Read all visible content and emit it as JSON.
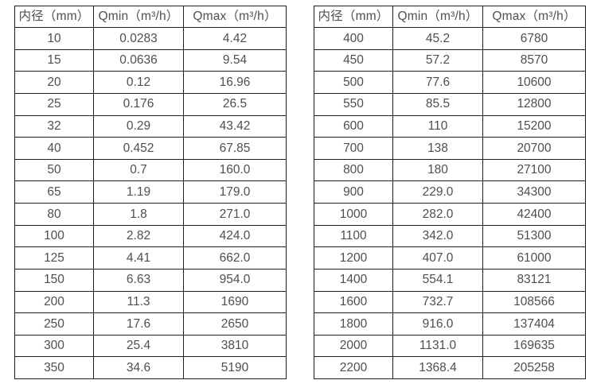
{
  "page": {
    "background_color": "#ffffff",
    "text_color": "#4f4f4f",
    "border_color": "#1f1f1f"
  },
  "tables": [
    {
      "name": "flow-rate-table-small-diameters",
      "headers": [
        "内径（mm）",
        "Qmin（m³/h）",
        "Qmax（m³/h）"
      ],
      "rows": [
        [
          "10",
          "0.0283",
          "4.42"
        ],
        [
          "15",
          "0.0636",
          "9.54"
        ],
        [
          "20",
          "0.12",
          "16.96"
        ],
        [
          "25",
          "0.176",
          "26.5"
        ],
        [
          "32",
          "0.29",
          "43.42"
        ],
        [
          "40",
          "0.452",
          "67.85"
        ],
        [
          "50",
          "0.7",
          "160.0"
        ],
        [
          "65",
          "1.19",
          "179.0"
        ],
        [
          "80",
          "1.8",
          "271.0"
        ],
        [
          "100",
          "2.82",
          "424.0"
        ],
        [
          "125",
          "4.41",
          "662.0"
        ],
        [
          "150",
          "6.63",
          "954.0"
        ],
        [
          "200",
          "11.3",
          "1690"
        ],
        [
          "250",
          "17.6",
          "2650"
        ],
        [
          "300",
          "25.4",
          "3810"
        ],
        [
          "350",
          "34.6",
          "5190"
        ]
      ]
    },
    {
      "name": "flow-rate-table-large-diameters",
      "headers": [
        "内径（mm）",
        "Qmin（m³/h）",
        "Qmax（m³/h）"
      ],
      "rows": [
        [
          "400",
          "45.2",
          "6780"
        ],
        [
          "450",
          "57.2",
          "8570"
        ],
        [
          "500",
          "77.6",
          "10600"
        ],
        [
          "550",
          "85.5",
          "12800"
        ],
        [
          "600",
          "110",
          "15200"
        ],
        [
          "700",
          "138",
          "20700"
        ],
        [
          "800",
          "180",
          "27100"
        ],
        [
          "900",
          "229.0",
          "34300"
        ],
        [
          "1000",
          "282.0",
          "42400"
        ],
        [
          "1100",
          "342.0",
          "51300"
        ],
        [
          "1200",
          "407.0",
          "61000"
        ],
        [
          "1400",
          "554.1",
          "83121"
        ],
        [
          "1600",
          "732.7",
          "108566"
        ],
        [
          "1800",
          "916.0",
          "137404"
        ],
        [
          "2000",
          "1131.0",
          "169635"
        ],
        [
          "2200",
          "1368.4",
          "205258"
        ]
      ]
    }
  ]
}
